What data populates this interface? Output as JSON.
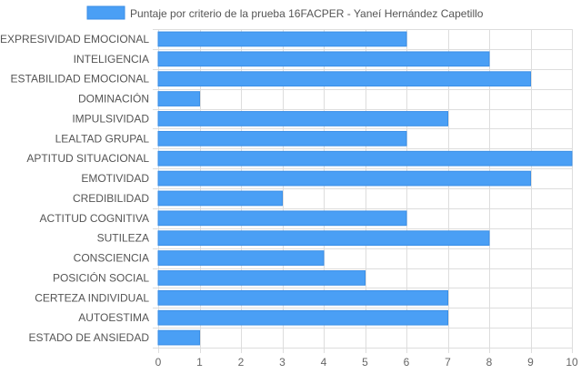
{
  "chart_data": {
    "type": "bar",
    "orientation": "horizontal",
    "series": [
      {
        "name": "Puntaje por criterio de la prueba 16FACPER - Yaneí Hernández Capetillo",
        "color": "#4a9ff5",
        "values": [
          6,
          8,
          9,
          1,
          7,
          6,
          10,
          9,
          3,
          6,
          8,
          4,
          5,
          7,
          7,
          1
        ]
      }
    ],
    "categories": [
      "EXPRESIVIDAD EMOCIONAL",
      "INTELIGENCIA",
      "ESTABILIDAD EMOCIONAL",
      "DOMINACIÓN",
      "IMPULSIVIDAD",
      "LEALTAD GRUPAL",
      "APTITUD SITUACIONAL",
      "EMOTIVIDAD",
      "CREDIBILIDAD",
      "ACTITUD COGNITIVA",
      "SUTILEZA",
      "CONSCIENCIA",
      "POSICIÓN SOCIAL",
      "CERTEZA INDIVIDUAL",
      "AUTOESTIMA",
      "ESTADO DE ANSIEDAD"
    ],
    "xlim": [
      0,
      10
    ],
    "xticks": [
      "0",
      "1",
      "2",
      "3",
      "4",
      "5",
      "6",
      "7",
      "8",
      "9",
      "10"
    ],
    "grid": true,
    "legend": "top",
    "colors": {
      "bar_fill": "#4a9ff5",
      "bar_stroke": "#3a8ee6",
      "grid": "#dddddd"
    }
  }
}
